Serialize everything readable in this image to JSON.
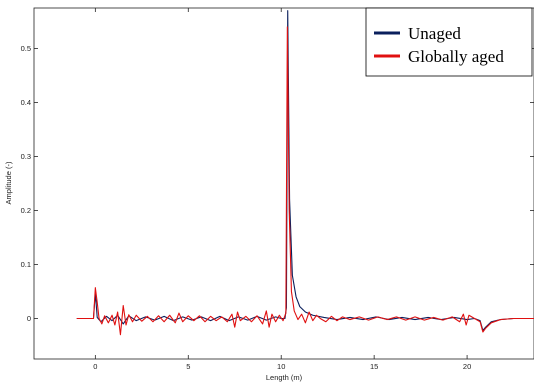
{
  "chart_data": {
    "type": "line",
    "xlabel": "Length (m)",
    "ylabel": "Amplitude (-)",
    "xlim": [
      -3.3,
      23.6
    ],
    "ylim": [
      -0.075,
      0.575
    ],
    "xticks": [
      0,
      5,
      10,
      15,
      20
    ],
    "yticks": [
      0,
      0.1,
      0.2,
      0.3,
      0.4,
      0.5
    ],
    "xtick_labels": [
      "0",
      "5",
      "10",
      "15",
      "20"
    ],
    "ytick_labels": [
      "0",
      "0.1",
      "0.2",
      "0.3",
      "0.4",
      "0.5"
    ],
    "grid": false,
    "legend_position": "top-right",
    "series": [
      {
        "name": "Unaged",
        "color": "#0a1f5c",
        "points": [
          [
            -1.0,
            0.0
          ],
          [
            -0.1,
            0.0
          ],
          [
            0.0,
            0.048
          ],
          [
            0.1,
            0.002
          ],
          [
            0.3,
            -0.006
          ],
          [
            0.6,
            0.004
          ],
          [
            0.9,
            -0.004
          ],
          [
            1.2,
            0.006
          ],
          [
            1.5,
            -0.01
          ],
          [
            1.8,
            0.005
          ],
          [
            2.2,
            -0.004
          ],
          [
            2.7,
            0.003
          ],
          [
            3.2,
            -0.003
          ],
          [
            3.7,
            0.004
          ],
          [
            4.2,
            -0.004
          ],
          [
            4.7,
            0.003
          ],
          [
            5.2,
            -0.003
          ],
          [
            5.7,
            0.003
          ],
          [
            6.2,
            -0.004
          ],
          [
            6.7,
            0.004
          ],
          [
            7.2,
            -0.004
          ],
          [
            7.7,
            0.003
          ],
          [
            8.2,
            -0.003
          ],
          [
            8.7,
            0.004
          ],
          [
            9.2,
            -0.003
          ],
          [
            9.7,
            0.003
          ],
          [
            10.0,
            0.0
          ],
          [
            10.2,
            0.0
          ],
          [
            10.28,
            0.02
          ],
          [
            10.35,
            0.57
          ],
          [
            10.45,
            0.22
          ],
          [
            10.6,
            0.08
          ],
          [
            10.8,
            0.04
          ],
          [
            11.0,
            0.022
          ],
          [
            11.3,
            0.012
          ],
          [
            11.7,
            0.006
          ],
          [
            12.3,
            0.002
          ],
          [
            13.0,
            -0.002
          ],
          [
            13.7,
            0.002
          ],
          [
            14.4,
            -0.002
          ],
          [
            15.1,
            0.003
          ],
          [
            15.8,
            -0.002
          ],
          [
            16.5,
            0.002
          ],
          [
            17.2,
            -0.002
          ],
          [
            17.9,
            0.002
          ],
          [
            18.6,
            -0.002
          ],
          [
            19.3,
            0.002
          ],
          [
            20.0,
            -0.002
          ],
          [
            20.4,
            0.0
          ],
          [
            20.7,
            -0.004
          ],
          [
            20.85,
            -0.022
          ],
          [
            21.0,
            -0.016
          ],
          [
            21.3,
            -0.006
          ],
          [
            21.8,
            -0.002
          ],
          [
            22.5,
            0.0
          ],
          [
            23.6,
            0.0
          ]
        ]
      },
      {
        "name": "Globally aged",
        "color": "#e01010",
        "points": [
          [
            -1.0,
            0.0
          ],
          [
            -0.1,
            0.0
          ],
          [
            0.0,
            0.057
          ],
          [
            0.1,
            0.03
          ],
          [
            0.2,
            0.0
          ],
          [
            0.35,
            -0.01
          ],
          [
            0.5,
            0.005
          ],
          [
            0.7,
            -0.008
          ],
          [
            0.9,
            0.006
          ],
          [
            1.05,
            -0.012
          ],
          [
            1.2,
            0.012
          ],
          [
            1.35,
            -0.03
          ],
          [
            1.5,
            0.024
          ],
          [
            1.65,
            -0.012
          ],
          [
            1.8,
            0.007
          ],
          [
            2.0,
            -0.006
          ],
          [
            2.2,
            0.006
          ],
          [
            2.5,
            -0.005
          ],
          [
            2.8,
            0.004
          ],
          [
            3.1,
            -0.006
          ],
          [
            3.4,
            0.005
          ],
          [
            3.7,
            -0.006
          ],
          [
            4.0,
            0.006
          ],
          [
            4.3,
            -0.008
          ],
          [
            4.5,
            0.01
          ],
          [
            4.7,
            -0.006
          ],
          [
            5.0,
            0.005
          ],
          [
            5.3,
            -0.004
          ],
          [
            5.6,
            0.005
          ],
          [
            5.9,
            -0.006
          ],
          [
            6.2,
            0.004
          ],
          [
            6.5,
            -0.004
          ],
          [
            6.8,
            0.003
          ],
          [
            7.1,
            -0.006
          ],
          [
            7.35,
            0.008
          ],
          [
            7.5,
            -0.016
          ],
          [
            7.65,
            0.012
          ],
          [
            7.8,
            -0.004
          ],
          [
            8.1,
            0.004
          ],
          [
            8.4,
            -0.006
          ],
          [
            8.7,
            0.005
          ],
          [
            9.0,
            -0.01
          ],
          [
            9.2,
            0.014
          ],
          [
            9.35,
            -0.016
          ],
          [
            9.5,
            0.008
          ],
          [
            9.7,
            -0.006
          ],
          [
            9.9,
            0.006
          ],
          [
            10.1,
            -0.004
          ],
          [
            10.25,
            0.01
          ],
          [
            10.33,
            0.54
          ],
          [
            10.43,
            0.2
          ],
          [
            10.55,
            0.05
          ],
          [
            10.7,
            0.014
          ],
          [
            10.9,
            -0.002
          ],
          [
            11.1,
            0.008
          ],
          [
            11.3,
            -0.008
          ],
          [
            11.5,
            0.012
          ],
          [
            11.7,
            -0.004
          ],
          [
            11.9,
            0.006
          ],
          [
            12.1,
            0.0
          ],
          [
            12.4,
            -0.006
          ],
          [
            12.7,
            0.004
          ],
          [
            13.0,
            -0.004
          ],
          [
            13.3,
            0.003
          ],
          [
            13.7,
            -0.002
          ],
          [
            14.2,
            0.003
          ],
          [
            14.7,
            -0.003
          ],
          [
            15.2,
            0.003
          ],
          [
            15.7,
            -0.002
          ],
          [
            16.2,
            0.003
          ],
          [
            16.7,
            -0.003
          ],
          [
            17.2,
            0.003
          ],
          [
            17.7,
            -0.003
          ],
          [
            18.2,
            0.002
          ],
          [
            18.7,
            -0.003
          ],
          [
            19.2,
            0.003
          ],
          [
            19.6,
            -0.006
          ],
          [
            19.8,
            0.008
          ],
          [
            19.95,
            -0.012
          ],
          [
            20.1,
            0.006
          ],
          [
            20.4,
            0.0
          ],
          [
            20.7,
            -0.006
          ],
          [
            20.85,
            -0.025
          ],
          [
            21.0,
            -0.018
          ],
          [
            21.3,
            -0.008
          ],
          [
            21.8,
            -0.002
          ],
          [
            22.5,
            0.0
          ],
          [
            23.6,
            0.0
          ]
        ]
      }
    ]
  }
}
